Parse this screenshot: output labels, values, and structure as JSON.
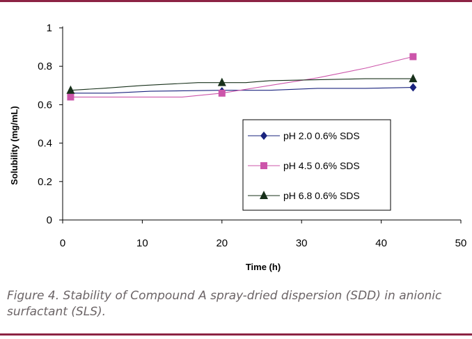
{
  "chart_data": {
    "type": "line",
    "xlabel": "Time (h)",
    "ylabel": "Solubility (mg/mL)",
    "xlim": [
      0,
      50
    ],
    "ylim": [
      0,
      1
    ],
    "xticks": [
      0,
      10,
      20,
      30,
      40,
      50
    ],
    "yticks": [
      0,
      0.2,
      0.4,
      0.6,
      0.8,
      1
    ],
    "ytick_labels": [
      "0",
      "0.2",
      "0.4",
      "0.6",
      "0.8",
      "1"
    ],
    "grid": false,
    "legend_position": "center-right",
    "series": [
      {
        "name": "pH 2.0 0.6% SDS",
        "color": "#1a237e",
        "marker": "diamond",
        "line": [
          [
            1,
            0.66
          ],
          [
            6,
            0.66
          ],
          [
            11,
            0.67
          ],
          [
            20,
            0.675
          ],
          [
            26,
            0.675
          ],
          [
            32,
            0.685
          ],
          [
            38,
            0.685
          ],
          [
            44,
            0.69
          ]
        ],
        "points": [
          [
            1,
            0.66
          ],
          [
            20,
            0.67
          ],
          [
            44,
            0.69
          ]
        ]
      },
      {
        "name": "pH 4.5 0.6% SDS",
        "color": "#cc55aa",
        "marker": "square",
        "line": [
          [
            1,
            0.64
          ],
          [
            15,
            0.64
          ],
          [
            20,
            0.66
          ],
          [
            26,
            0.7
          ],
          [
            32,
            0.74
          ],
          [
            38,
            0.79
          ],
          [
            44,
            0.85
          ]
        ],
        "points": [
          [
            1,
            0.64
          ],
          [
            20,
            0.66
          ],
          [
            44,
            0.85
          ]
        ]
      },
      {
        "name": "pH 6.8 0.6% SDS",
        "color": "#17301a",
        "marker": "triangle",
        "line": [
          [
            1,
            0.675
          ],
          [
            5,
            0.685
          ],
          [
            10,
            0.7
          ],
          [
            17,
            0.715
          ],
          [
            23,
            0.715
          ],
          [
            26,
            0.725
          ],
          [
            38,
            0.735
          ],
          [
            44,
            0.735
          ]
        ],
        "points": [
          [
            1,
            0.675
          ],
          [
            20,
            0.715
          ],
          [
            44,
            0.735
          ]
        ]
      }
    ]
  },
  "caption": "Figure 4. Stability of Compound A spray-dried dispersion (SDD) in anionic surfactant (SLS).",
  "colors": {
    "rule": "#8c2344",
    "caption": "#6b6466"
  }
}
